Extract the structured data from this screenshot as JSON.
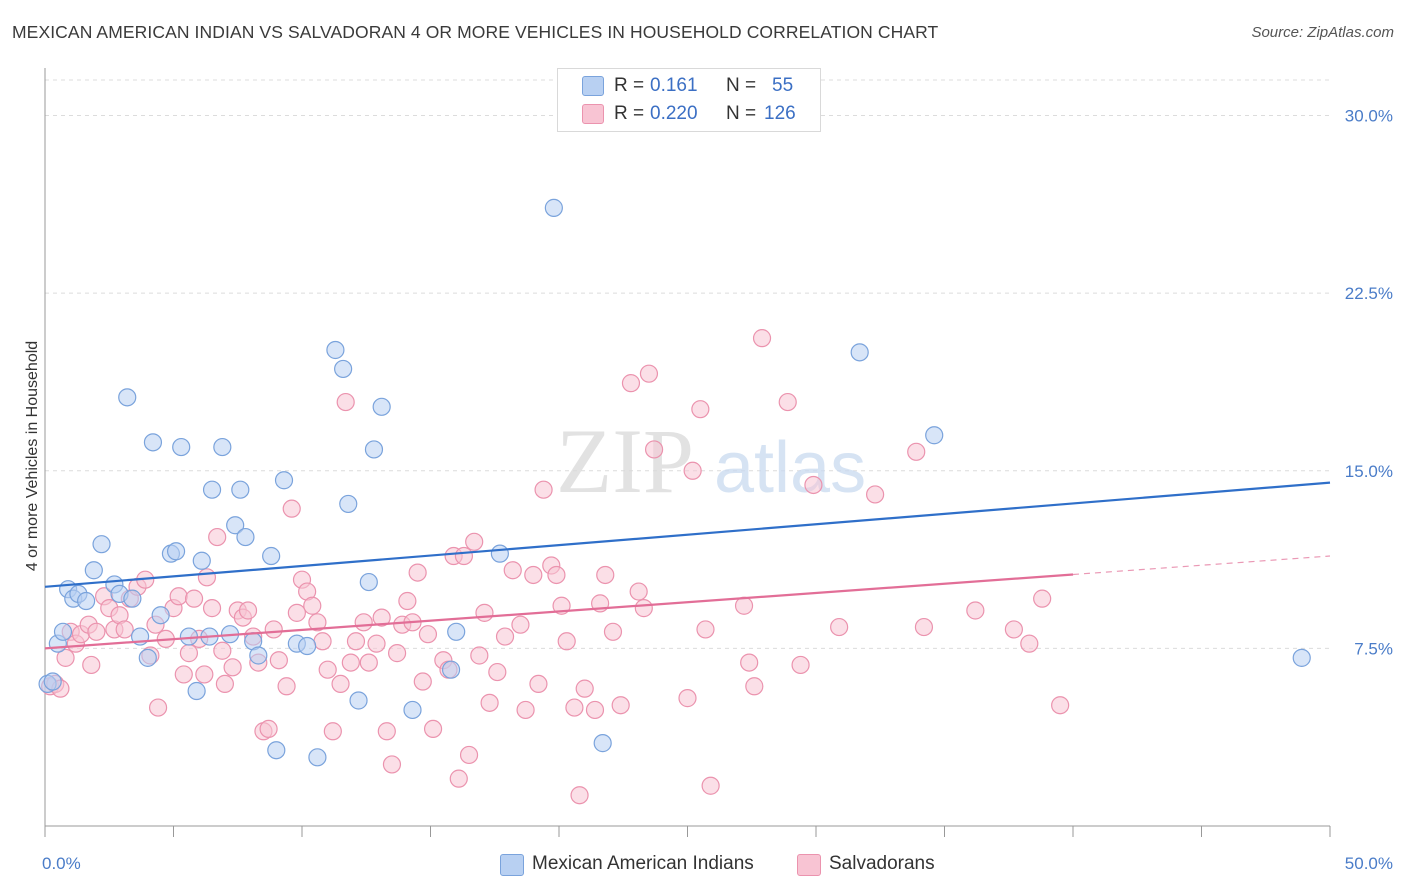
{
  "title": "MEXICAN AMERICAN INDIAN VS SALVADORAN 4 OR MORE VEHICLES IN HOUSEHOLD CORRELATION CHART",
  "source": "Source: ZipAtlas.com",
  "watermark": {
    "zip": "ZIP",
    "atlas": "atlas"
  },
  "legend": [
    {
      "r_label": "R =",
      "r_value": "0.161",
      "n_label": "N =",
      "n_value": "55"
    },
    {
      "r_label": "R =",
      "r_value": "0.220",
      "n_label": "N =",
      "n_value": "126"
    }
  ],
  "colors": {
    "blue_fill": "#b8d0f2",
    "blue_stroke": "#7aa3dc",
    "blue_line": "#2f6fc9",
    "pink_fill": "#f8c4d3",
    "pink_stroke": "#eb93ae",
    "pink_line": "#e26e97",
    "grid": "#dcdcdc",
    "tick_text": "#4a7cc8"
  },
  "chart_data": {
    "type": "scatter",
    "title": "MEXICAN AMERICAN INDIAN VS SALVADORAN 4 OR MORE VEHICLES IN HOUSEHOLD CORRELATION CHART",
    "xlabel": "",
    "ylabel": "4 or more Vehicles in Household",
    "xlim": [
      0,
      50
    ],
    "ylim": [
      0,
      31.5
    ],
    "x_tick_labels": [
      "0.0%",
      "50.0%"
    ],
    "y_ticks": [
      7.5,
      15.0,
      22.5,
      30.0
    ],
    "y_tick_labels": [
      "7.5%",
      "15.0%",
      "22.5%",
      "30.0%"
    ],
    "grid": true,
    "series": [
      {
        "name": "Mexican American Indians",
        "color": "blue",
        "trend": {
          "x": [
            0,
            50
          ],
          "y": [
            10.1,
            14.5
          ],
          "dashed_from": null
        },
        "points": [
          [
            0.1,
            6.0
          ],
          [
            0.3,
            6.1
          ],
          [
            0.5,
            7.7
          ],
          [
            0.7,
            8.2
          ],
          [
            0.9,
            10.0
          ],
          [
            1.1,
            9.6
          ],
          [
            1.3,
            9.8
          ],
          [
            1.6,
            9.5
          ],
          [
            1.9,
            10.8
          ],
          [
            2.2,
            11.9
          ],
          [
            2.7,
            10.2
          ],
          [
            2.9,
            9.8
          ],
          [
            3.2,
            18.1
          ],
          [
            3.4,
            9.6
          ],
          [
            3.7,
            8.0
          ],
          [
            4.0,
            7.1
          ],
          [
            4.2,
            16.2
          ],
          [
            4.5,
            8.9
          ],
          [
            4.9,
            11.5
          ],
          [
            5.1,
            11.6
          ],
          [
            5.3,
            16.0
          ],
          [
            5.6,
            8.0
          ],
          [
            5.9,
            5.7
          ],
          [
            6.1,
            11.2
          ],
          [
            6.4,
            8.0
          ],
          [
            6.5,
            14.2
          ],
          [
            6.9,
            16.0
          ],
          [
            7.2,
            8.1
          ],
          [
            7.4,
            12.7
          ],
          [
            7.6,
            14.2
          ],
          [
            7.8,
            12.2
          ],
          [
            8.1,
            7.8
          ],
          [
            8.3,
            7.2
          ],
          [
            8.8,
            11.4
          ],
          [
            9.0,
            3.2
          ],
          [
            9.3,
            14.6
          ],
          [
            9.8,
            7.7
          ],
          [
            10.2,
            7.6
          ],
          [
            10.6,
            2.9
          ],
          [
            11.3,
            20.1
          ],
          [
            11.6,
            19.3
          ],
          [
            11.8,
            13.6
          ],
          [
            12.2,
            5.3
          ],
          [
            12.6,
            10.3
          ],
          [
            12.8,
            15.9
          ],
          [
            13.1,
            17.7
          ],
          [
            14.3,
            4.9
          ],
          [
            15.8,
            6.6
          ],
          [
            16.0,
            8.2
          ],
          [
            17.7,
            11.5
          ],
          [
            19.8,
            26.1
          ],
          [
            21.7,
            3.5
          ],
          [
            31.7,
            20.0
          ],
          [
            34.6,
            16.5
          ],
          [
            48.9,
            7.1
          ]
        ]
      },
      {
        "name": "Salvadorans",
        "color": "pink",
        "trend": {
          "x": [
            0,
            50
          ],
          "y": [
            7.5,
            11.4
          ],
          "dashed_from": 40
        },
        "points": [
          [
            0.2,
            5.9
          ],
          [
            0.4,
            6.0
          ],
          [
            0.6,
            5.8
          ],
          [
            0.8,
            7.1
          ],
          [
            1.0,
            8.2
          ],
          [
            1.2,
            7.7
          ],
          [
            1.4,
            8.1
          ],
          [
            1.7,
            8.5
          ],
          [
            1.8,
            6.8
          ],
          [
            2.0,
            8.2
          ],
          [
            2.3,
            9.7
          ],
          [
            2.5,
            9.2
          ],
          [
            2.7,
            8.3
          ],
          [
            2.9,
            8.9
          ],
          [
            3.1,
            8.3
          ],
          [
            3.3,
            9.6
          ],
          [
            3.6,
            10.1
          ],
          [
            3.9,
            10.4
          ],
          [
            4.1,
            7.2
          ],
          [
            4.3,
            8.5
          ],
          [
            4.4,
            5.0
          ],
          [
            4.7,
            7.9
          ],
          [
            5.0,
            9.2
          ],
          [
            5.2,
            9.7
          ],
          [
            5.4,
            6.4
          ],
          [
            5.6,
            7.3
          ],
          [
            5.8,
            9.6
          ],
          [
            6.0,
            7.9
          ],
          [
            6.2,
            6.4
          ],
          [
            6.3,
            10.5
          ],
          [
            6.5,
            9.2
          ],
          [
            6.7,
            12.2
          ],
          [
            6.9,
            7.4
          ],
          [
            7.0,
            6.0
          ],
          [
            7.3,
            6.7
          ],
          [
            7.5,
            9.1
          ],
          [
            7.7,
            8.8
          ],
          [
            7.9,
            9.1
          ],
          [
            8.1,
            8.0
          ],
          [
            8.3,
            6.9
          ],
          [
            8.5,
            4.0
          ],
          [
            8.7,
            4.1
          ],
          [
            8.9,
            8.3
          ],
          [
            9.1,
            7.0
          ],
          [
            9.4,
            5.9
          ],
          [
            9.6,
            13.4
          ],
          [
            9.8,
            9.0
          ],
          [
            10.0,
            10.4
          ],
          [
            10.2,
            9.9
          ],
          [
            10.4,
            9.3
          ],
          [
            10.6,
            8.6
          ],
          [
            10.8,
            7.8
          ],
          [
            11.0,
            6.6
          ],
          [
            11.2,
            4.0
          ],
          [
            11.5,
            6.0
          ],
          [
            11.7,
            17.9
          ],
          [
            11.9,
            6.9
          ],
          [
            12.1,
            7.8
          ],
          [
            12.4,
            8.6
          ],
          [
            12.6,
            6.9
          ],
          [
            12.9,
            7.7
          ],
          [
            13.1,
            8.8
          ],
          [
            13.3,
            4.0
          ],
          [
            13.5,
            2.6
          ],
          [
            13.7,
            7.3
          ],
          [
            13.9,
            8.5
          ],
          [
            14.1,
            9.5
          ],
          [
            14.3,
            8.6
          ],
          [
            14.5,
            10.7
          ],
          [
            14.7,
            6.1
          ],
          [
            14.9,
            8.1
          ],
          [
            15.1,
            4.1
          ],
          [
            15.5,
            7.0
          ],
          [
            15.7,
            6.6
          ],
          [
            15.9,
            11.4
          ],
          [
            16.1,
            2.0
          ],
          [
            16.3,
            11.4
          ],
          [
            16.5,
            3.0
          ],
          [
            16.7,
            12.0
          ],
          [
            16.9,
            7.2
          ],
          [
            17.1,
            9.0
          ],
          [
            17.3,
            5.2
          ],
          [
            17.6,
            6.5
          ],
          [
            17.9,
            8.0
          ],
          [
            18.2,
            10.8
          ],
          [
            18.5,
            8.5
          ],
          [
            18.7,
            4.9
          ],
          [
            19.0,
            10.6
          ],
          [
            19.2,
            6.0
          ],
          [
            19.4,
            14.2
          ],
          [
            19.7,
            11.0
          ],
          [
            19.9,
            10.6
          ],
          [
            20.1,
            9.3
          ],
          [
            20.3,
            7.8
          ],
          [
            20.6,
            5.0
          ],
          [
            20.8,
            1.3
          ],
          [
            21.0,
            5.8
          ],
          [
            21.4,
            4.9
          ],
          [
            21.6,
            9.4
          ],
          [
            21.8,
            10.6
          ],
          [
            22.1,
            8.2
          ],
          [
            22.4,
            5.1
          ],
          [
            22.8,
            18.7
          ],
          [
            23.1,
            9.9
          ],
          [
            23.3,
            9.2
          ],
          [
            23.5,
            19.1
          ],
          [
            23.7,
            15.9
          ],
          [
            25.0,
            5.4
          ],
          [
            25.2,
            15.0
          ],
          [
            25.5,
            17.6
          ],
          [
            25.7,
            8.3
          ],
          [
            25.9,
            1.7
          ],
          [
            27.2,
            9.3
          ],
          [
            27.4,
            6.9
          ],
          [
            27.6,
            5.9
          ],
          [
            27.9,
            20.6
          ],
          [
            28.9,
            17.9
          ],
          [
            29.4,
            6.8
          ],
          [
            29.9,
            14.4
          ],
          [
            30.9,
            8.4
          ],
          [
            32.3,
            14.0
          ],
          [
            33.9,
            15.8
          ],
          [
            34.2,
            8.4
          ],
          [
            36.2,
            9.1
          ],
          [
            37.7,
            8.3
          ],
          [
            38.3,
            7.7
          ],
          [
            38.8,
            9.6
          ],
          [
            39.5,
            5.1
          ]
        ]
      }
    ],
    "legend_entries": [
      "Mexican American Indians",
      "Salvadorans"
    ]
  }
}
